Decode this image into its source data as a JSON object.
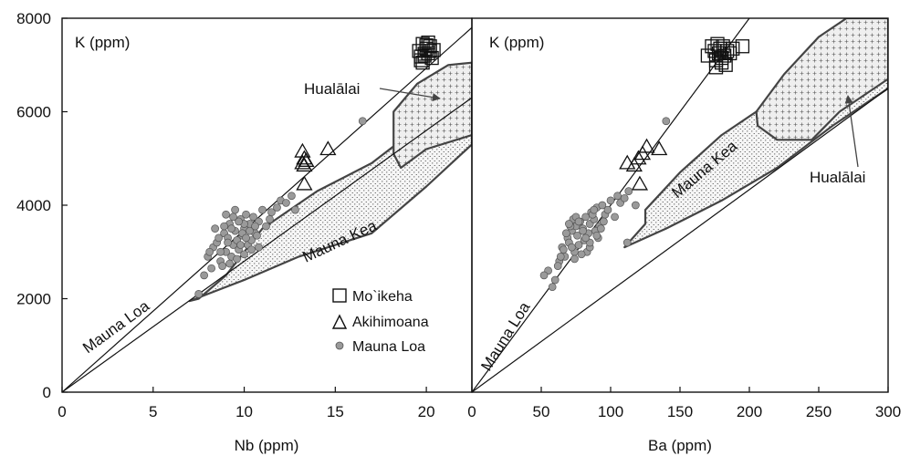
{
  "chart_data": [
    {
      "type": "scatter",
      "panel_label": "K (ppm)",
      "xlabel": "Nb (ppm)",
      "ylabel": "",
      "xlim": [
        0,
        22.5
      ],
      "ylim": [
        0,
        8000
      ],
      "x_ticks": [
        "0",
        "5",
        "10",
        "15",
        "20"
      ],
      "y_ticks": [
        "0",
        "2000",
        "4000",
        "6000",
        "8000"
      ],
      "series": [
        {
          "name": "Mo`ikeha",
          "marker": "square",
          "x": [
            19.6,
            19.7,
            19.8,
            19.9,
            20.0,
            20.1,
            20.2,
            20.3,
            19.8,
            20.0,
            20.2,
            19.7,
            20.1,
            20.4,
            19.9
          ],
          "y": [
            7300,
            7100,
            7450,
            7200,
            7350,
            7250,
            7400,
            7150,
            7050,
            7420,
            7300,
            7180,
            7480,
            7320,
            7240
          ]
        },
        {
          "name": "Akihimoana",
          "marker": "triangle",
          "x": [
            13.2,
            13.3,
            13.4,
            13.2,
            13.3,
            14.6,
            13.3
          ],
          "y": [
            5150,
            5000,
            4950,
            4900,
            4850,
            5200,
            4450
          ]
        },
        {
          "name": "Mauna Loa",
          "marker": "circle",
          "x": [
            8.0,
            8.3,
            8.5,
            8.7,
            8.9,
            9.0,
            9.1,
            9.2,
            9.3,
            9.4,
            9.5,
            9.6,
            9.7,
            9.8,
            9.9,
            10.0,
            10.1,
            10.2,
            10.3,
            10.4,
            10.5,
            10.6,
            10.8,
            11.0,
            11.2,
            11.5,
            11.8,
            12.0,
            12.3,
            12.6,
            8.4,
            8.8,
            9.2,
            9.6,
            10.0,
            10.4,
            10.8,
            9.0,
            9.5,
            10.0,
            8.6,
            9.3,
            9.9,
            10.7,
            7.8,
            8.1,
            11.4,
            12.8,
            16.5,
            8.9,
            9.7,
            10.3,
            9.1,
            9.8,
            8.7,
            10.1,
            9.4,
            10.6,
            8.2,
            7.5
          ],
          "y": [
            2900,
            3100,
            3200,
            2800,
            3400,
            3000,
            3300,
            3600,
            2900,
            3150,
            3450,
            3250,
            3050,
            3700,
            3350,
            3500,
            3800,
            3150,
            3600,
            3250,
            3750,
            3400,
            3650,
            3900,
            3550,
            3850,
            3950,
            4100,
            4050,
            4200,
            3500,
            2700,
            2750,
            2850,
            2950,
            3050,
            3100,
            3800,
            3900,
            3600,
            3300,
            3500,
            3400,
            3350,
            2500,
            3000,
            3700,
            3900,
            5800,
            3550,
            3650,
            3450,
            3200,
            3150,
            3000,
            3300,
            3750,
            3550,
            2650,
            2100
          ]
        }
      ],
      "fields": [
        {
          "name": "Mauna Kea",
          "outline": [
            [
              7,
              1950
            ],
            [
              8,
              2100
            ],
            [
              10,
              2400
            ],
            [
              13,
              2900
            ],
            [
              17,
              3400
            ],
            [
              20,
              4400
            ],
            [
              22.5,
              5300
            ],
            [
              22.5,
              7000
            ],
            [
              19,
              5500
            ],
            [
              17,
              4900
            ],
            [
              14,
              4300
            ],
            [
              11,
              3500
            ],
            [
              9,
              2500
            ],
            [
              7.5,
              2000
            ]
          ]
        },
        {
          "name": "Hualālai",
          "outline": [
            [
              18.2,
              6000
            ],
            [
              19.5,
              6600
            ],
            [
              21.2,
              7000
            ],
            [
              22.5,
              7050
            ],
            [
              22.5,
              5500
            ],
            [
              20,
              5200
            ],
            [
              18.6,
              4800
            ],
            [
              18.2,
              5100
            ]
          ]
        }
      ],
      "reference_lines": [
        {
          "label": "Mauna Loa",
          "from": [
            0,
            0
          ],
          "to": [
            22.5,
            7800
          ]
        },
        {
          "label": "",
          "from": [
            0,
            0
          ],
          "to": [
            22.5,
            6300
          ]
        }
      ],
      "annotations": [
        {
          "text": "Mauna Loa",
          "rotation": -36
        },
        {
          "text": "Mauna Kea",
          "rotation": -25
        },
        {
          "text": "Hualālai",
          "arrow_to": [
            20.6,
            6350
          ]
        }
      ],
      "legend": {
        "position": "bottom-right",
        "entries": [
          "Mo`ikeha",
          "Akihimoana",
          "Mauna Loa"
        ]
      }
    },
    {
      "type": "scatter",
      "panel_label": "K (ppm)",
      "xlabel": "Ba (ppm)",
      "ylabel": "",
      "xlim": [
        0,
        300
      ],
      "ylim": [
        0,
        8000
      ],
      "x_ticks": [
        "0",
        "50",
        "100",
        "150",
        "200",
        "250",
        "300"
      ],
      "series": [
        {
          "name": "Mo`ikeha",
          "marker": "square",
          "x": [
            170,
            173,
            175,
            176,
            177,
            178,
            179,
            180,
            181,
            182,
            184,
            186,
            188,
            195,
            176,
            180,
            183
          ],
          "y": [
            7200,
            7400,
            7300,
            7100,
            7450,
            7250,
            7350,
            7050,
            7400,
            7200,
            7300,
            7250,
            7350,
            7400,
            6950,
            7150,
            7000
          ]
        },
        {
          "name": "Akihimoana",
          "marker": "triangle",
          "x": [
            112,
            117,
            120,
            123,
            126,
            135,
            121
          ],
          "y": [
            4900,
            4850,
            5000,
            5100,
            5250,
            5200,
            4450
          ]
        },
        {
          "name": "Mauna Loa",
          "marker": "circle",
          "x": [
            55,
            60,
            63,
            65,
            67,
            69,
            70,
            72,
            74,
            75,
            76,
            78,
            80,
            81,
            82,
            84,
            85,
            86,
            88,
            90,
            92,
            94,
            96,
            98,
            100,
            103,
            105,
            107,
            110,
            113,
            66,
            71,
            77,
            83,
            89,
            95,
            74,
            79,
            85,
            91,
            68,
            73,
            87,
            58,
            52,
            62,
            112,
            118,
            140,
            70,
            80,
            90,
            75,
            85,
            72,
            93,
            77,
            88,
            64,
            82
          ],
          "y": [
            2600,
            2400,
            2800,
            3100,
            2900,
            3300,
            3200,
            3450,
            3000,
            3550,
            3350,
            3650,
            3500,
            3250,
            3750,
            3400,
            3600,
            3850,
            3700,
            3950,
            3550,
            4000,
            3800,
            3900,
            4100,
            3750,
            4200,
            4050,
            4150,
            4300,
            3050,
            3550,
            3150,
            3000,
            3450,
            3650,
            2850,
            2950,
            3100,
            3300,
            3400,
            3700,
            3800,
            2250,
            2500,
            2700,
            3200,
            4000,
            5800,
            3600,
            3450,
            3350,
            3750,
            3200,
            3100,
            3500,
            3650,
            3900,
            2900,
            3300
          ]
        }
      ],
      "fields": [
        {
          "name": "Mauna Kea",
          "outline": [
            [
              125,
              3900
            ],
            [
              150,
              4700
            ],
            [
              180,
              5500
            ],
            [
              220,
              6300
            ],
            [
              260,
              7000
            ],
            [
              300,
              7900
            ],
            [
              300,
              6500
            ],
            [
              260,
              5700
            ],
            [
              220,
              4800
            ],
            [
              180,
              4100
            ],
            [
              140,
              3500
            ],
            [
              110,
              3100
            ],
            [
              125,
              3600
            ]
          ]
        },
        {
          "name": "Hualālai",
          "outline": [
            [
              205,
              6000
            ],
            [
              225,
              6800
            ],
            [
              250,
              7600
            ],
            [
              270,
              8000
            ],
            [
              300,
              8000
            ],
            [
              300,
              6700
            ],
            [
              265,
              6000
            ],
            [
              245,
              5400
            ],
            [
              220,
              5400
            ],
            [
              206,
              5700
            ]
          ]
        }
      ],
      "reference_lines": [
        {
          "label": "Mauna Loa",
          "from": [
            0,
            0
          ],
          "to": [
            200,
            8000
          ]
        },
        {
          "label": "",
          "from": [
            0,
            0
          ],
          "to": [
            300,
            6500
          ]
        }
      ],
      "annotations": [
        {
          "text": "Mauna Loa",
          "rotation": -58
        },
        {
          "text": "Mauna Kea",
          "rotation": -40
        },
        {
          "text": "Hualālai",
          "arrow_to": [
            270,
            6450
          ]
        }
      ]
    }
  ]
}
